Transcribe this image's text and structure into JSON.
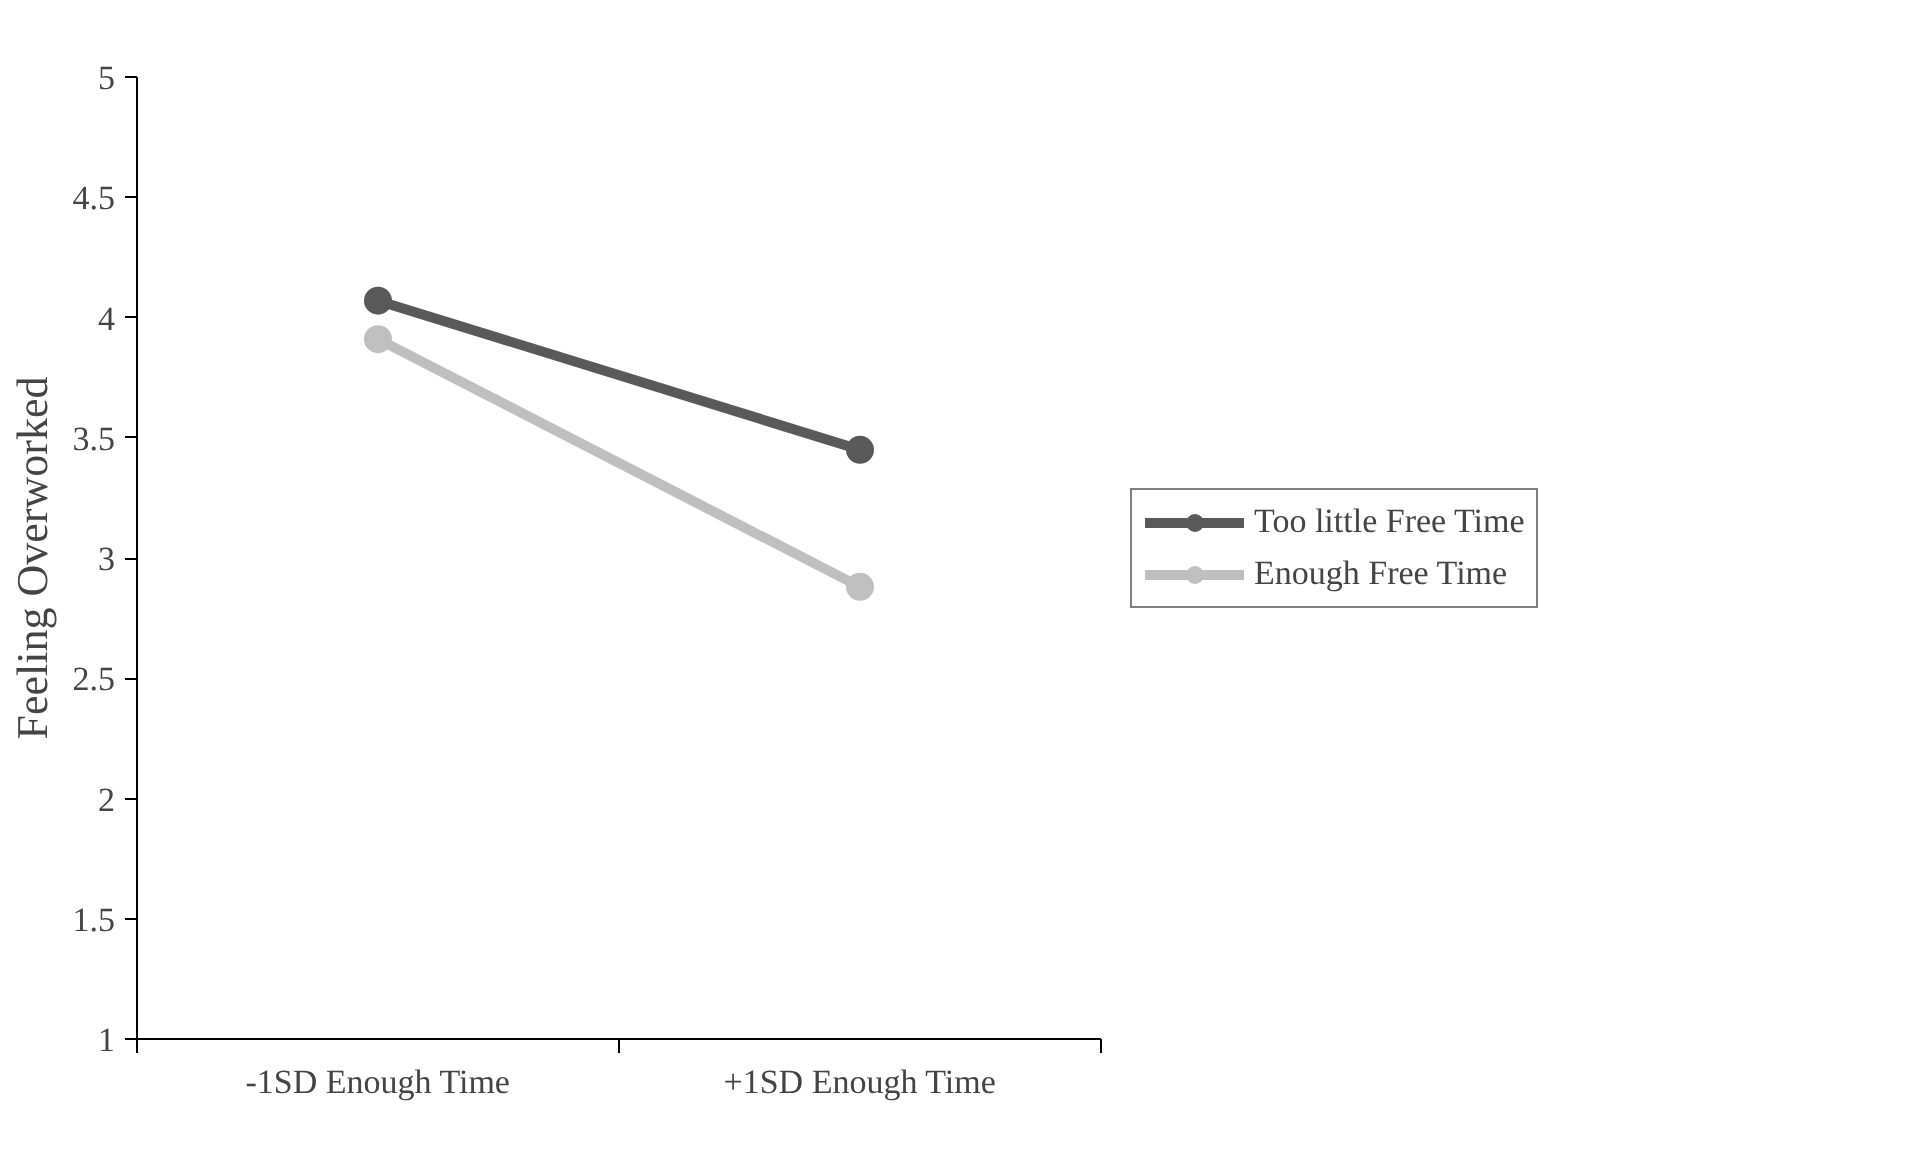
{
  "chart_data": {
    "type": "line",
    "ylabel": "Feeling Overworked",
    "categories": [
      "-1SD Enough Time",
      "+1SD Enough Time"
    ],
    "series": [
      {
        "name": "Too little Free Time",
        "color": "#595959",
        "values": [
          4.07,
          3.45
        ]
      },
      {
        "name": "Enough Free Time",
        "color": "#bfbfbf",
        "values": [
          3.91,
          2.88
        ]
      }
    ],
    "ylim": [
      1,
      5
    ],
    "yticks": [
      1,
      1.5,
      2,
      2.5,
      3,
      3.5,
      4,
      4.5,
      5
    ],
    "grid": false,
    "legend": "right",
    "marker": "circle",
    "line_style": "solid"
  }
}
